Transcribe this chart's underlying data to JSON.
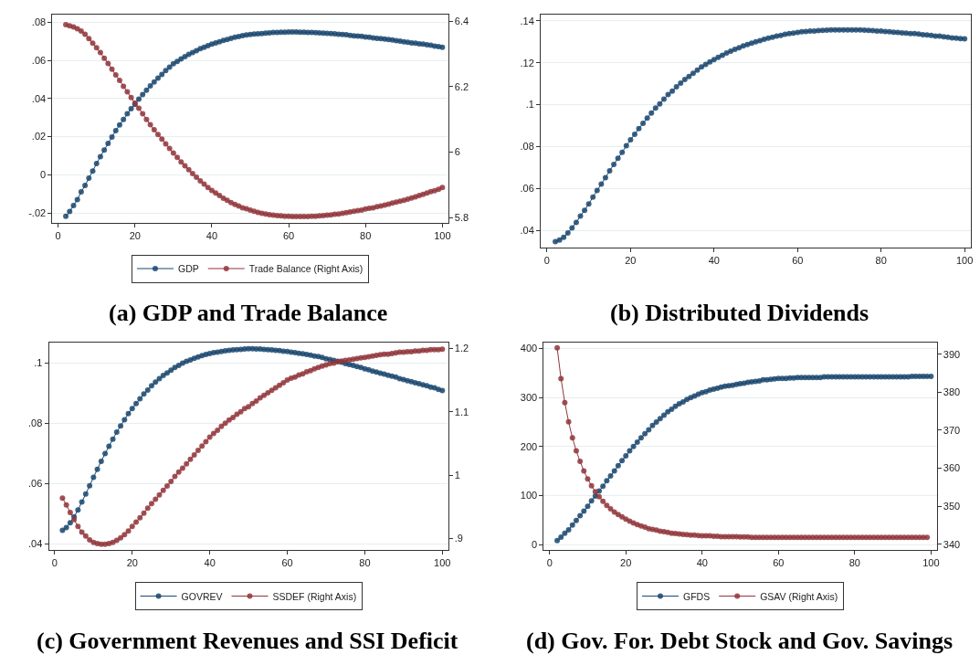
{
  "chart_data": [
    {
      "type": "line",
      "title": "(a) GDP and Trade Balance",
      "grid": "y",
      "legend": "bottom",
      "marker": "circle",
      "line_style": "solid",
      "xlim": [
        -1.5,
        101.5
      ],
      "xticks": [
        0,
        20,
        40,
        60,
        80,
        100
      ],
      "ylim": [
        -0.025,
        0.084
      ],
      "yticks": [
        {
          "value": -0.02,
          "label": "-.02"
        },
        0,
        {
          "value": 0.02,
          "label": ".02"
        },
        {
          "value": 0.04,
          "label": ".04"
        },
        {
          "value": 0.06,
          "label": ".06"
        },
        {
          "value": 0.08,
          "label": ".08"
        }
      ],
      "y2lim": [
        5.785,
        6.42
      ],
      "y2ticks": [
        5.8,
        6,
        6.2,
        6.4
      ],
      "x": [
        2,
        3,
        4,
        5,
        6,
        7,
        8,
        9,
        10,
        11,
        12,
        13,
        14,
        15,
        16,
        17,
        18,
        19,
        20,
        21,
        22,
        23,
        24,
        25,
        26,
        27,
        28,
        29,
        30,
        31,
        32,
        33,
        34,
        35,
        36,
        37,
        38,
        39,
        40,
        41,
        42,
        43,
        44,
        45,
        46,
        47,
        48,
        49,
        50,
        51,
        52,
        53,
        54,
        55,
        56,
        57,
        58,
        59,
        60,
        61,
        62,
        63,
        64,
        65,
        66,
        67,
        68,
        69,
        70,
        71,
        72,
        73,
        74,
        75,
        76,
        77,
        78,
        79,
        80,
        81,
        82,
        83,
        84,
        85,
        86,
        87,
        88,
        89,
        90,
        91,
        92,
        93,
        94,
        95,
        96,
        97,
        98,
        99,
        100
      ],
      "series": [
        {
          "name": "GDP",
          "color": "#1a476f",
          "values": [
            -0.0218,
            -0.0193,
            -0.0161,
            -0.013,
            -0.009,
            -0.0056,
            -0.0018,
            0.002,
            0.0059,
            0.0095,
            0.013,
            0.0164,
            0.0198,
            0.0231,
            0.0262,
            0.029,
            0.032,
            0.0346,
            0.0369,
            0.0397,
            0.0421,
            0.0444,
            0.0466,
            0.0487,
            0.0507,
            0.0526,
            0.0546,
            0.0564,
            0.0582,
            0.0595,
            0.0608,
            0.062,
            0.0631,
            0.0641,
            0.0651,
            0.0661,
            0.0669,
            0.0677,
            0.0685,
            0.0692,
            0.0698,
            0.0705,
            0.071,
            0.0716,
            0.0721,
            0.0725,
            0.073,
            0.0733,
            0.0736,
            0.0738,
            0.0739,
            0.0741,
            0.0743,
            0.0744,
            0.0746,
            0.0747,
            0.0748,
            0.0748,
            0.0749,
            0.0749,
            0.0749,
            0.0748,
            0.0748,
            0.0747,
            0.0746,
            0.0745,
            0.0744,
            0.0743,
            0.0742,
            0.074,
            0.0739,
            0.0737,
            0.0736,
            0.0734,
            0.0731,
            0.0729,
            0.0728,
            0.0726,
            0.0723,
            0.0721,
            0.0718,
            0.0716,
            0.0714,
            0.0712,
            0.071,
            0.0707,
            0.0704,
            0.0701,
            0.0698,
            0.0695,
            0.0692,
            0.069,
            0.0687,
            0.0685,
            0.0682,
            0.0679,
            0.0675,
            0.0672,
            0.0669
          ]
        },
        {
          "name": "Trade Balance (Right Axis)",
          "color": "#90353b",
          "axis": "y2",
          "values": [
            6.389,
            6.386,
            6.382,
            6.377,
            6.37,
            6.36,
            6.347,
            6.333,
            6.319,
            6.304,
            6.287,
            6.271,
            6.253,
            6.236,
            6.219,
            6.201,
            6.184,
            6.167,
            6.15,
            6.134,
            6.117,
            6.1,
            6.084,
            6.068,
            6.054,
            6.04,
            6.025,
            6.011,
            5.997,
            5.984,
            5.97,
            5.958,
            5.946,
            5.934,
            5.923,
            5.912,
            5.902,
            5.892,
            5.883,
            5.875,
            5.867,
            5.859,
            5.853,
            5.846,
            5.84,
            5.835,
            5.83,
            5.827,
            5.823,
            5.819,
            5.816,
            5.813,
            5.811,
            5.809,
            5.807,
            5.806,
            5.805,
            5.804,
            5.804,
            5.803,
            5.803,
            5.803,
            5.803,
            5.803,
            5.804,
            5.804,
            5.805,
            5.806,
            5.807,
            5.808,
            5.81,
            5.811,
            5.813,
            5.815,
            5.817,
            5.819,
            5.821,
            5.823,
            5.826,
            5.828,
            5.83,
            5.833,
            5.835,
            5.838,
            5.841,
            5.844,
            5.847,
            5.85,
            5.853,
            5.856,
            5.86,
            5.863,
            5.867,
            5.871,
            5.875,
            5.879,
            5.882,
            5.886,
            5.892
          ]
        }
      ]
    },
    {
      "type": "line",
      "title": "(b) Distributed Dividends",
      "grid": "y",
      "marker": "circle",
      "line_style": "solid",
      "xlim": [
        -1.5,
        101.5
      ],
      "xticks": [
        0,
        20,
        40,
        60,
        80,
        100
      ],
      "ylim": [
        0.032,
        0.143
      ],
      "yticks": [
        {
          "value": 0.04,
          "label": ".04"
        },
        {
          "value": 0.06,
          "label": ".06"
        },
        {
          "value": 0.08,
          "label": ".08"
        },
        {
          "value": 0.1,
          "label": ".1"
        },
        {
          "value": 0.12,
          "label": ".12"
        },
        {
          "value": 0.14,
          "label": ".14"
        }
      ],
      "x": [
        2,
        3,
        4,
        5,
        6,
        7,
        8,
        9,
        10,
        11,
        12,
        13,
        14,
        15,
        16,
        17,
        18,
        19,
        20,
        21,
        22,
        23,
        24,
        25,
        26,
        27,
        28,
        29,
        30,
        31,
        32,
        33,
        34,
        35,
        36,
        37,
        38,
        39,
        40,
        41,
        42,
        43,
        44,
        45,
        46,
        47,
        48,
        49,
        50,
        51,
        52,
        53,
        54,
        55,
        56,
        57,
        58,
        59,
        60,
        61,
        62,
        63,
        64,
        65,
        66,
        67,
        68,
        69,
        70,
        71,
        72,
        73,
        74,
        75,
        76,
        77,
        78,
        79,
        80,
        81,
        82,
        83,
        84,
        85,
        86,
        87,
        88,
        89,
        90,
        91,
        92,
        93,
        94,
        95,
        96,
        97,
        98,
        99,
        100
      ],
      "series": [
        {
          "color": "#1a476f",
          "values": [
            0.0346,
            0.0354,
            0.0367,
            0.0388,
            0.0412,
            0.0438,
            0.0468,
            0.0496,
            0.0526,
            0.0559,
            0.059,
            0.0621,
            0.0652,
            0.0684,
            0.0715,
            0.0744,
            0.0773,
            0.0804,
            0.0832,
            0.0859,
            0.0886,
            0.0911,
            0.0936,
            0.096,
            0.0984,
            0.1004,
            0.1027,
            0.1048,
            0.1065,
            0.1085,
            0.1103,
            0.112,
            0.1135,
            0.115,
            0.1165,
            0.118,
            0.1192,
            0.1204,
            0.1215,
            0.1226,
            0.1236,
            0.1247,
            0.1256,
            0.1264,
            0.1272,
            0.1281,
            0.1287,
            0.1294,
            0.13,
            0.1306,
            0.1312,
            0.1318,
            0.1322,
            0.1327,
            0.1331,
            0.1336,
            0.1339,
            0.1342,
            0.1345,
            0.1348,
            0.1349,
            0.1351,
            0.1352,
            0.1354,
            0.1355,
            0.1356,
            0.1357,
            0.1357,
            0.1357,
            0.1357,
            0.1357,
            0.1357,
            0.1357,
            0.1357,
            0.1356,
            0.1355,
            0.1354,
            0.1352,
            0.1351,
            0.1349,
            0.1348,
            0.1346,
            0.1345,
            0.1343,
            0.1342,
            0.134,
            0.1339,
            0.1337,
            0.1334,
            0.1333,
            0.1331,
            0.1328,
            0.1327,
            0.1324,
            0.1322,
            0.1319,
            0.1318,
            0.1315,
            0.1314
          ]
        }
      ]
    },
    {
      "type": "line",
      "title": "(c) Government Revenues and SSI Deficit",
      "grid": "y",
      "legend": "bottom",
      "marker": "circle",
      "line_style": "solid",
      "xlim": [
        -1.5,
        101.5
      ],
      "xticks": [
        0,
        20,
        40,
        60,
        80,
        100
      ],
      "ylim": [
        0.038,
        0.107
      ],
      "yticks": [
        {
          "value": 0.04,
          "label": ".04"
        },
        {
          "value": 0.06,
          "label": ".06"
        },
        {
          "value": 0.08,
          "label": ".08"
        },
        {
          "value": 0.1,
          "label": ".1"
        }
      ],
      "y2lim": [
        0.882,
        1.21
      ],
      "y2ticks": [
        {
          "value": 0.9,
          "label": ".9"
        },
        1,
        1.1,
        1.2
      ],
      "x": [
        2,
        3,
        4,
        5,
        6,
        7,
        8,
        9,
        10,
        11,
        12,
        13,
        14,
        15,
        16,
        17,
        18,
        19,
        20,
        21,
        22,
        23,
        24,
        25,
        26,
        27,
        28,
        29,
        30,
        31,
        32,
        33,
        34,
        35,
        36,
        37,
        38,
        39,
        40,
        41,
        42,
        43,
        44,
        45,
        46,
        47,
        48,
        49,
        50,
        51,
        52,
        53,
        54,
        55,
        56,
        57,
        58,
        59,
        60,
        61,
        62,
        63,
        64,
        65,
        66,
        67,
        68,
        69,
        70,
        71,
        72,
        73,
        74,
        75,
        76,
        77,
        78,
        79,
        80,
        81,
        82,
        83,
        84,
        85,
        86,
        87,
        88,
        89,
        90,
        91,
        92,
        93,
        94,
        95,
        96,
        97,
        98,
        99,
        100
      ],
      "series": [
        {
          "name": "GOVREV",
          "color": "#1a476f",
          "values": [
            0.0445,
            0.0454,
            0.047,
            0.049,
            0.0513,
            0.0539,
            0.0566,
            0.0593,
            0.0621,
            0.0648,
            0.0674,
            0.07,
            0.0724,
            0.0748,
            0.0771,
            0.0792,
            0.0812,
            0.0833,
            0.0849,
            0.0866,
            0.0882,
            0.0898,
            0.0911,
            0.0925,
            0.0937,
            0.0949,
            0.0959,
            0.0968,
            0.0977,
            0.0986,
            0.0993,
            0.1,
            0.1006,
            0.1011,
            0.1016,
            0.1021,
            0.1025,
            0.1029,
            0.1032,
            0.1035,
            0.1037,
            0.1039,
            0.1041,
            0.1043,
            0.1044,
            0.1045,
            0.1046,
            0.1047,
            0.1048,
            0.1048,
            0.1047,
            0.1047,
            0.1046,
            0.1045,
            0.1044,
            0.1043,
            0.1042,
            0.104,
            0.1039,
            0.1037,
            0.1035,
            0.1033,
            0.1031,
            0.1029,
            0.1027,
            0.1024,
            0.1022,
            0.1019,
            0.1015,
            0.1012,
            0.1009,
            0.1006,
            0.1003,
            0.0999,
            0.0996,
            0.0993,
            0.0989,
            0.0986,
            0.0981,
            0.0978,
            0.0974,
            0.0971,
            0.0967,
            0.0964,
            0.096,
            0.0957,
            0.0954,
            0.0949,
            0.0946,
            0.0942,
            0.0939,
            0.0935,
            0.0932,
            0.0928,
            0.0925,
            0.0921,
            0.0918,
            0.0913,
            0.0909
          ]
        },
        {
          "name": "SSDEF (Right Axis)",
          "color": "#90353b",
          "axis": "y2",
          "values": [
            0.964,
            0.953,
            0.941,
            0.93,
            0.919,
            0.91,
            0.904,
            0.898,
            0.894,
            0.892,
            0.891,
            0.891,
            0.892,
            0.894,
            0.897,
            0.901,
            0.906,
            0.912,
            0.919,
            0.926,
            0.933,
            0.94,
            0.948,
            0.955,
            0.962,
            0.969,
            0.976,
            0.983,
            0.99,
            0.998,
            1.005,
            1.011,
            1.018,
            1.025,
            1.032,
            1.039,
            1.046,
            1.053,
            1.06,
            1.066,
            1.071,
            1.077,
            1.082,
            1.087,
            1.091,
            1.096,
            1.1,
            1.105,
            1.108,
            1.113,
            1.117,
            1.122,
            1.126,
            1.13,
            1.134,
            1.138,
            1.142,
            1.146,
            1.15,
            1.153,
            1.155,
            1.158,
            1.16,
            1.163,
            1.165,
            1.168,
            1.17,
            1.172,
            1.174,
            1.176,
            1.177,
            1.179,
            1.18,
            1.181,
            1.182,
            1.183,
            1.184,
            1.185,
            1.186,
            1.187,
            1.188,
            1.189,
            1.19,
            1.191,
            1.191,
            1.192,
            1.193,
            1.194,
            1.194,
            1.195,
            1.195,
            1.196,
            1.196,
            1.197,
            1.197,
            1.198,
            1.198,
            1.198,
            1.199
          ]
        }
      ]
    },
    {
      "type": "line",
      "title": "(d) Gov. For. Debt Stock and Gov. Savings",
      "grid": "y",
      "legend": "bottom",
      "marker": "circle",
      "line_style": "solid",
      "xlim": [
        -1.5,
        101.5
      ],
      "xticks": [
        0,
        20,
        40,
        60,
        80,
        100
      ],
      "ylim": [
        -11,
        413
      ],
      "yticks": [
        0,
        100,
        200,
        300,
        400
      ],
      "y2lim": [
        338.5,
        393.2
      ],
      "y2ticks": [
        340,
        350,
        360,
        370,
        380,
        390
      ],
      "x": [
        2,
        3,
        4,
        5,
        6,
        7,
        8,
        9,
        10,
        11,
        12,
        13,
        14,
        15,
        16,
        17,
        18,
        19,
        20,
        21,
        22,
        23,
        24,
        25,
        26,
        27,
        28,
        29,
        30,
        31,
        32,
        33,
        34,
        35,
        36,
        37,
        38,
        39,
        40,
        41,
        42,
        43,
        44,
        45,
        46,
        47,
        48,
        49,
        50,
        51,
        52,
        53,
        54,
        55,
        56,
        57,
        58,
        59,
        60,
        61,
        62,
        63,
        64,
        65,
        66,
        67,
        68,
        69,
        70,
        71,
        72,
        73,
        74,
        75,
        76,
        77,
        78,
        79,
        80,
        81,
        82,
        83,
        84,
        85,
        86,
        87,
        88,
        89,
        90,
        91,
        92,
        93,
        94,
        95,
        96,
        97,
        98,
        99,
        100
      ],
      "series": [
        {
          "name": "GFDS",
          "color": "#1a476f",
          "values": [
            8,
            15,
            23,
            30,
            40,
            49,
            59,
            68,
            78,
            89,
            99,
            109,
            119,
            130,
            140,
            150,
            161,
            171,
            181,
            191,
            200,
            209,
            218,
            226,
            234,
            243,
            250,
            257,
            264,
            271,
            276,
            282,
            287,
            291,
            296,
            300,
            303,
            307,
            310,
            312,
            315,
            317,
            319,
            321,
            323,
            324,
            325,
            327,
            328,
            329,
            331,
            332,
            333,
            334,
            336,
            336,
            337,
            338,
            339,
            339,
            339,
            340,
            340,
            341,
            341,
            341,
            341,
            341,
            341,
            341,
            342,
            342,
            342,
            342,
            342,
            342,
            342,
            342,
            342,
            342,
            342,
            342,
            342,
            342,
            342,
            342,
            342,
            342,
            342,
            342,
            342,
            342,
            342,
            343,
            343,
            343,
            343,
            343,
            343
          ]
        },
        {
          "name": "GSAV (Right Axis)",
          "color": "#90353b",
          "axis": "y2",
          "values": [
            391.7,
            383.6,
            377.3,
            372.2,
            368.0,
            364.6,
            361.8,
            359.3,
            357.2,
            355.4,
            353.8,
            352.5,
            351.3,
            350.2,
            349.3,
            348.5,
            347.8,
            347.2,
            346.6,
            346.1,
            345.6,
            345.2,
            344.8,
            344.5,
            344.1,
            343.9,
            343.7,
            343.4,
            343.3,
            343.1,
            342.9,
            342.8,
            342.7,
            342.6,
            342.5,
            342.4,
            342.4,
            342.3,
            342.2,
            342.2,
            342.2,
            342.1,
            342.1,
            342.0,
            342.0,
            342.0,
            342.0,
            342.0,
            341.9,
            341.9,
            341.9,
            341.8,
            341.8,
            341.8,
            341.8,
            341.8,
            341.8,
            341.8,
            341.8,
            341.8,
            341.8,
            341.8,
            341.8,
            341.8,
            341.8,
            341.8,
            341.8,
            341.8,
            341.8,
            341.8,
            341.8,
            341.8,
            341.8,
            341.8,
            341.8,
            341.8,
            341.8,
            341.8,
            341.8,
            341.8,
            341.8,
            341.8,
            341.8,
            341.8,
            341.8,
            341.8,
            341.8,
            341.8,
            341.8,
            341.8,
            341.8,
            341.8,
            341.8,
            341.8,
            341.8,
            341.8,
            341.8,
            341.8,
            null
          ]
        }
      ]
    }
  ]
}
